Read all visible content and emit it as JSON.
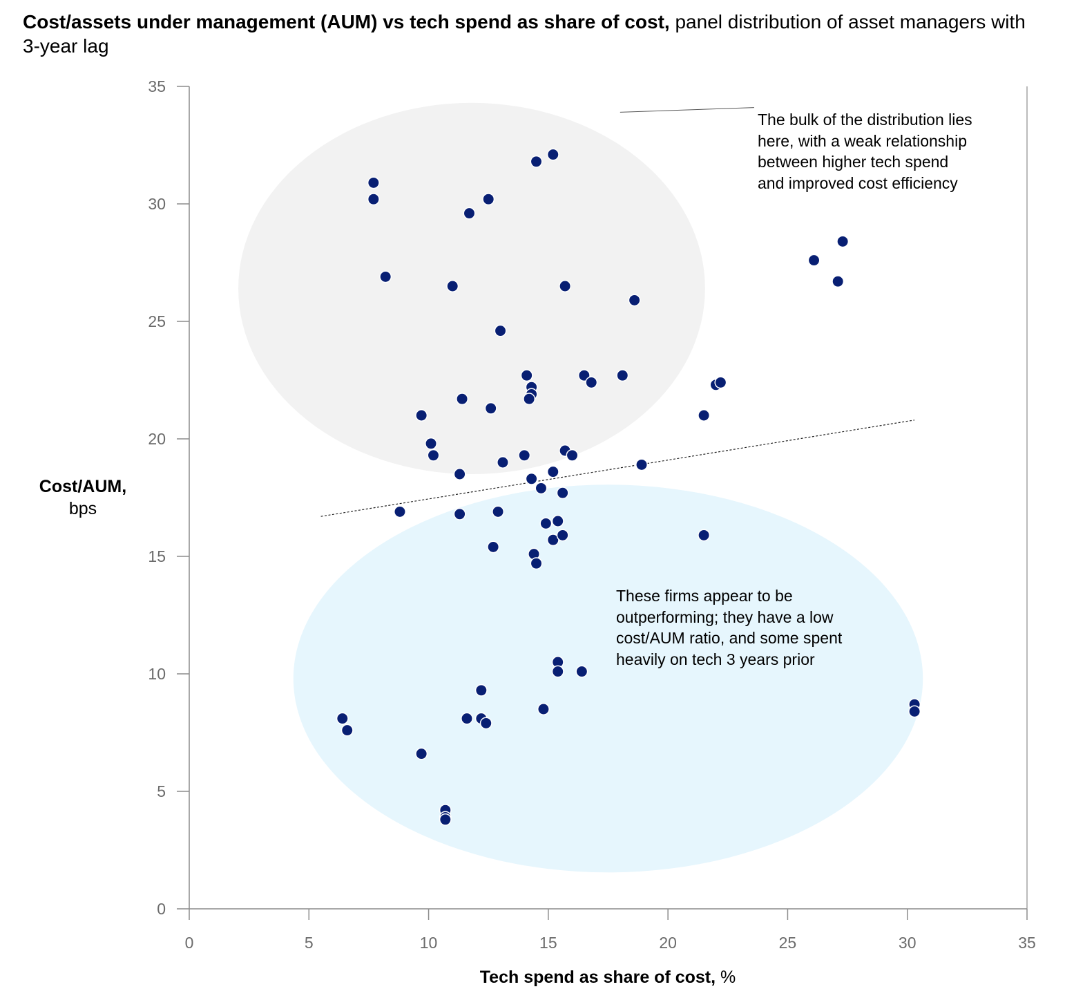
{
  "title": {
    "bold": "Cost/assets under management (AUM) vs tech spend as share of cost,",
    "rest": " panel distribution of asset managers with 3-year lag"
  },
  "chart_data": {
    "type": "scatter",
    "title": "Cost/assets under management (AUM) vs tech spend as share of cost, panel distribution of asset managers with 3-year lag",
    "xlabel_bold": "Tech spend as share of cost,",
    "xlabel_unit": " %",
    "ylabel_bold": "Cost/AUM,",
    "ylabel_unit": "bps",
    "xlim": [
      0,
      35
    ],
    "ylim": [
      0,
      35
    ],
    "xticks": [
      "0",
      "5",
      "10",
      "15",
      "20",
      "25",
      "30",
      "35"
    ],
    "yticks": [
      "0",
      "5",
      "10",
      "15",
      "20",
      "25",
      "30",
      "35"
    ],
    "points": [
      [
        7.7,
        30.9
      ],
      [
        7.7,
        30.2
      ],
      [
        8.2,
        26.9
      ],
      [
        14.5,
        31.8
      ],
      [
        15.2,
        32.1
      ],
      [
        11.7,
        29.6
      ],
      [
        12.5,
        30.2
      ],
      [
        11.0,
        26.5
      ],
      [
        15.7,
        26.5
      ],
      [
        18.6,
        25.9
      ],
      [
        13.0,
        24.6
      ],
      [
        26.1,
        27.6
      ],
      [
        27.3,
        28.4
      ],
      [
        27.1,
        26.7
      ],
      [
        14.1,
        22.7
      ],
      [
        14.3,
        22.2
      ],
      [
        14.3,
        21.9
      ],
      [
        14.2,
        21.7
      ],
      [
        16.5,
        22.7
      ],
      [
        16.8,
        22.4
      ],
      [
        18.1,
        22.7
      ],
      [
        22.0,
        22.3
      ],
      [
        22.2,
        22.4
      ],
      [
        11.4,
        21.7
      ],
      [
        12.6,
        21.3
      ],
      [
        9.7,
        21.0
      ],
      [
        21.5,
        21.0
      ],
      [
        10.1,
        19.8
      ],
      [
        10.2,
        19.3
      ],
      [
        13.1,
        19.0
      ],
      [
        14.0,
        19.3
      ],
      [
        15.7,
        19.5
      ],
      [
        16.0,
        19.3
      ],
      [
        18.9,
        18.9
      ],
      [
        11.3,
        18.5
      ],
      [
        15.2,
        18.6
      ],
      [
        14.3,
        18.3
      ],
      [
        14.7,
        17.9
      ],
      [
        15.6,
        17.7
      ],
      [
        8.8,
        16.9
      ],
      [
        11.3,
        16.8
      ],
      [
        12.9,
        16.9
      ],
      [
        14.9,
        16.4
      ],
      [
        15.4,
        16.5
      ],
      [
        15.2,
        15.7
      ],
      [
        15.6,
        15.9
      ],
      [
        21.5,
        15.9
      ],
      [
        12.7,
        15.4
      ],
      [
        14.4,
        15.1
      ],
      [
        14.5,
        14.7
      ],
      [
        15.4,
        10.5
      ],
      [
        15.4,
        10.1
      ],
      [
        16.4,
        10.1
      ],
      [
        12.2,
        9.3
      ],
      [
        14.8,
        8.5
      ],
      [
        6.4,
        8.1
      ],
      [
        6.6,
        7.6
      ],
      [
        11.6,
        8.1
      ],
      [
        12.2,
        8.1
      ],
      [
        12.4,
        7.9
      ],
      [
        30.3,
        8.7
      ],
      [
        30.3,
        8.4
      ],
      [
        9.7,
        6.6
      ],
      [
        10.7,
        4.2
      ],
      [
        10.7,
        3.9
      ],
      [
        10.7,
        3.8
      ]
    ],
    "trendline": {
      "from": [
        5.5,
        16.7
      ],
      "to": [
        30.3,
        20.8
      ]
    },
    "regions": [
      {
        "name": "bulk",
        "center": [
          11.8,
          26.4
        ],
        "radius": [
          9.75,
          7.9
        ],
        "color": "#f2f2f2"
      },
      {
        "name": "outperformers",
        "center": [
          17.5,
          9.8
        ],
        "radius": [
          13.15,
          8.25
        ],
        "color": "#e6f6fd"
      }
    ],
    "annotations": {
      "bulk": [
        "The bulk of the distribution lies",
        "here, with a weak relationship",
        "between higher tech spend",
        "and improved cost efficiency"
      ],
      "outperform": [
        "These firms appear to be",
        "outperforming; they have a low",
        "cost/AUM ratio, and some spent",
        "heavily on tech 3 years prior"
      ]
    },
    "pointer": {
      "from": [
        18.0,
        33.9
      ],
      "to": [
        23.6,
        34.1
      ]
    }
  },
  "colors": {
    "point": "#081f73",
    "axis": "#8c8c8c",
    "tick_text": "#6b6b6b",
    "bulk_region": "#f2f2f2",
    "outperform_region": "#e6f6fd"
  }
}
